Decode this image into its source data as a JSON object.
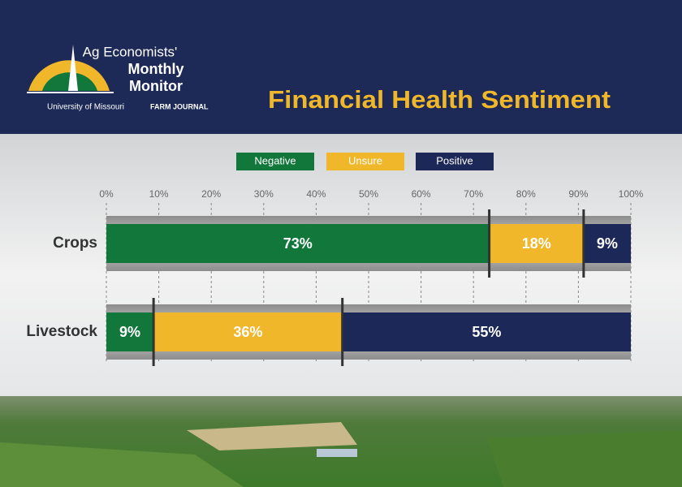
{
  "branding": {
    "line1": "Ag Economists'",
    "line2": "Monthly",
    "line3": "Monitor",
    "university": "University of Missouri",
    "partner": "FARM JOURNAL"
  },
  "chart_data": {
    "type": "stacked-barh",
    "title": "Financial Health Sentiment",
    "categories": [
      "Crops",
      "Livestock"
    ],
    "series": [
      {
        "name": "Negative",
        "color": "#11773a",
        "values": [
          73,
          9
        ],
        "value_labels": [
          "73%",
          "9%"
        ]
      },
      {
        "name": "Unsure",
        "color": "#f1b72b",
        "values": [
          18,
          36
        ],
        "value_labels": [
          "18%",
          "36%"
        ]
      },
      {
        "name": "Positive",
        "color": "#1c2857",
        "values": [
          9,
          55
        ],
        "value_labels": [
          "9%",
          "55%"
        ]
      }
    ],
    "xlim": [
      0,
      100
    ],
    "xticks": [
      {
        "value": 0,
        "label": "0%"
      },
      {
        "value": 10,
        "label": "10%"
      },
      {
        "value": 20,
        "label": "20%"
      },
      {
        "value": 30,
        "label": "30%"
      },
      {
        "value": 40,
        "label": "40%"
      },
      {
        "value": 50,
        "label": "50%"
      },
      {
        "value": 60,
        "label": "60%"
      },
      {
        "value": 70,
        "label": "70%"
      },
      {
        "value": 80,
        "label": "80%"
      },
      {
        "value": 90,
        "label": "90%"
      },
      {
        "value": 100,
        "label": "100%"
      }
    ],
    "grid": true,
    "legend": "top"
  }
}
